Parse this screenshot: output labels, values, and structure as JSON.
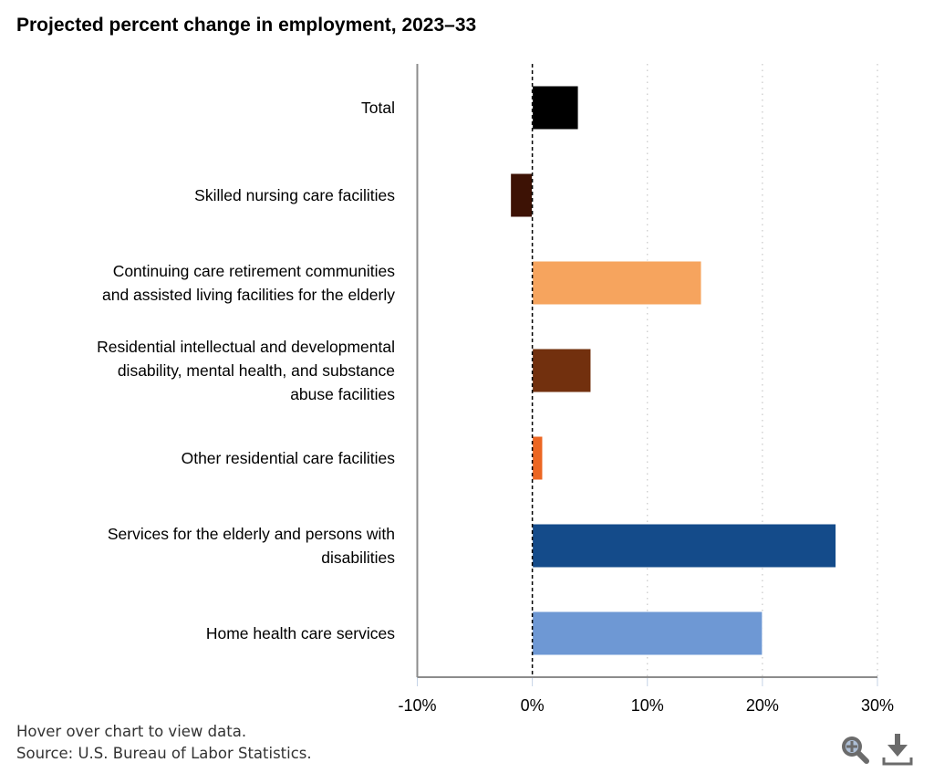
{
  "chart_data": {
    "type": "bar",
    "orientation": "horizontal",
    "title": "Projected percent change in employment, 2023–33",
    "xlabel": "",
    "ylabel": "",
    "xlim": [
      -10,
      30
    ],
    "xticks": [
      -10,
      0,
      10,
      20,
      30
    ],
    "xtick_labels": [
      "-10%",
      "0%",
      "10%",
      "20%",
      "30%"
    ],
    "grid": "vertical dotted",
    "categories": [
      [
        "Total"
      ],
      [
        "Skilled nursing care facilities"
      ],
      [
        "Continuing care retirement communities",
        "and assisted living facilities for the elderly"
      ],
      [
        "Residential intellectual and developmental",
        "disability, mental health, and substance",
        "abuse facilities"
      ],
      [
        "Other residential care facilities"
      ],
      [
        "Services for the elderly and persons with",
        "disabilities"
      ],
      [
        "Home health care services"
      ]
    ],
    "values": [
      4.0,
      -1.9,
      14.7,
      5.1,
      0.9,
      26.4,
      20.0
    ],
    "colors": [
      "#000000",
      "#3d1205",
      "#f6a45e",
      "#72300e",
      "#ec6622",
      "#144b8a",
      "#6e98d4"
    ]
  },
  "footer": {
    "hover_note": "Hover over chart to view data.",
    "source": "Source: U.S. Bureau of Labor Statistics."
  },
  "tools": {
    "zoom_icon": "magnifier-plus-icon",
    "download_icon": "download-icon"
  }
}
